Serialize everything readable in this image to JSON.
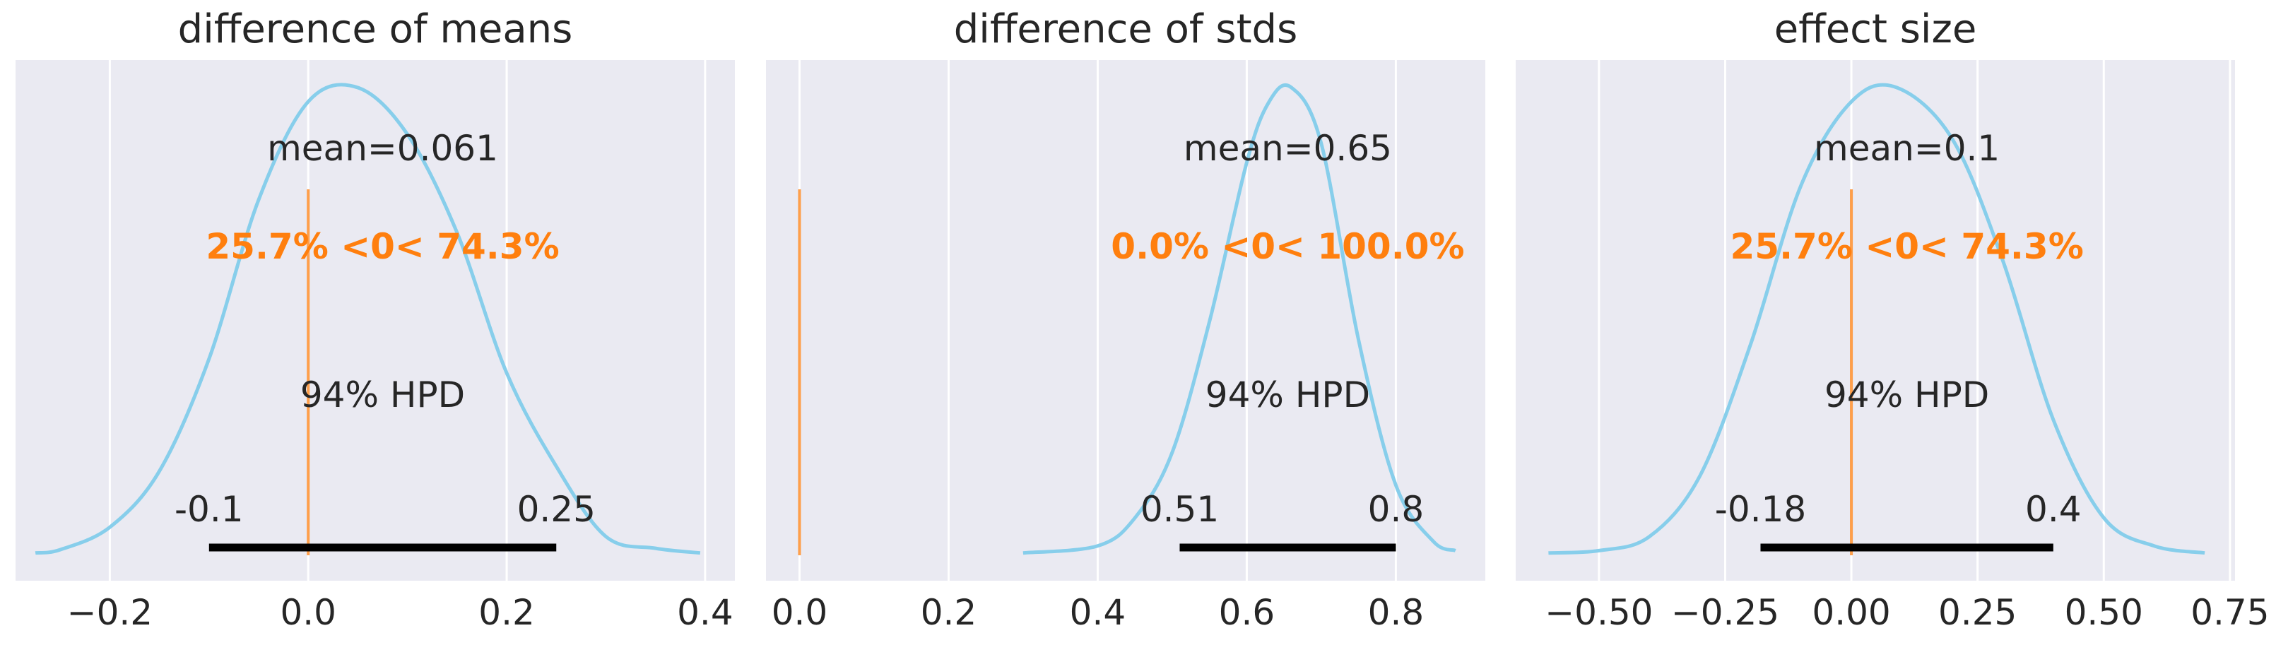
{
  "chart_data": [
    {
      "type": "line",
      "title": "difference of means",
      "xlabel": "",
      "ylabel": "",
      "xlim": [
        -0.295,
        0.43
      ],
      "xticks": [
        -0.2,
        0.0,
        0.2,
        0.4
      ],
      "xtick_labels": [
        "−0.2",
        "0.0",
        "0.2",
        "0.4"
      ],
      "grid": true,
      "density": {
        "x": [
          -0.275,
          -0.25,
          -0.2,
          -0.15,
          -0.1,
          -0.05,
          0.0,
          0.05,
          0.1,
          0.15,
          0.2,
          0.25,
          0.3,
          0.35,
          0.395
        ],
        "y": [
          0.005,
          0.012,
          0.06,
          0.18,
          0.42,
          0.76,
          0.97,
          1.0,
          0.9,
          0.69,
          0.39,
          0.19,
          0.04,
          0.015,
          0.005
        ]
      },
      "mean_label": "mean=0.061",
      "ref_value": 0,
      "ref_label": "25.7% <0< 74.3%",
      "hpd_label": "94% HPD",
      "hpd": [
        -0.1,
        0.25
      ],
      "hpd_labels": [
        "-0.1",
        "0.25"
      ]
    },
    {
      "type": "line",
      "title": "difference of stds",
      "xlabel": "",
      "ylabel": "",
      "xlim": [
        -0.045,
        0.92
      ],
      "xticks": [
        0.0,
        0.2,
        0.4,
        0.6,
        0.8
      ],
      "xtick_labels": [
        "0.0",
        "0.2",
        "0.4",
        "0.6",
        "0.8"
      ],
      "grid": true,
      "density": {
        "x": [
          0.3,
          0.4,
          0.45,
          0.5,
          0.55,
          0.6,
          0.63,
          0.66,
          0.7,
          0.75,
          0.8,
          0.85,
          0.88
        ],
        "y": [
          0.005,
          0.02,
          0.08,
          0.22,
          0.5,
          0.84,
          0.97,
          1.0,
          0.88,
          0.46,
          0.15,
          0.03,
          0.01
        ]
      },
      "mean_label": "mean=0.65",
      "ref_value": 0,
      "ref_label": "0.0% <0< 100.0%",
      "hpd_label": "94% HPD",
      "hpd": [
        0.51,
        0.8
      ],
      "hpd_labels": [
        "0.51",
        "0.8"
      ]
    },
    {
      "type": "line",
      "title": "effect size",
      "xlabel": "",
      "ylabel": "",
      "xlim": [
        -0.665,
        0.76
      ],
      "xticks": [
        -0.5,
        -0.25,
        0.0,
        0.25,
        0.5,
        0.75
      ],
      "xtick_labels": [
        "−0.50",
        "−0.25",
        "0.00",
        "0.25",
        "0.50",
        "0.75"
      ],
      "grid": true,
      "density": {
        "x": [
          -0.6,
          -0.5,
          -0.4,
          -0.3,
          -0.2,
          -0.1,
          0.0,
          0.09,
          0.2,
          0.3,
          0.4,
          0.5,
          0.6,
          0.7
        ],
        "y": [
          0.005,
          0.01,
          0.04,
          0.17,
          0.45,
          0.79,
          0.97,
          1.0,
          0.89,
          0.63,
          0.29,
          0.08,
          0.02,
          0.005
        ]
      },
      "mean_label": "mean=0.1",
      "ref_value": 0,
      "ref_label": "25.7% <0< 74.3%",
      "hpd_label": "94% HPD",
      "hpd": [
        -0.18,
        0.4
      ],
      "hpd_labels": [
        "-0.18",
        "0.4"
      ]
    }
  ],
  "colors": {
    "background": "#eaeaf2",
    "grid": "#ffffff",
    "density": "#87ceeb",
    "reference": "#ff7f0e",
    "text": "#262626",
    "hpd_bar": "#000000"
  }
}
